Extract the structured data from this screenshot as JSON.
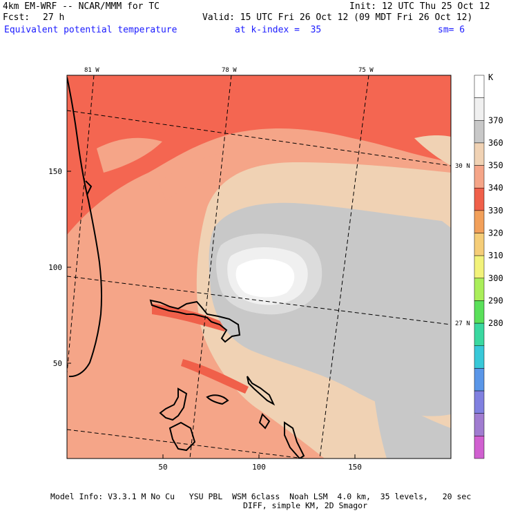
{
  "header": {
    "model": "4km EM-WRF -- NCAR/MMM for TC",
    "init": "Init: 12 UTC Thu 25 Oct 12",
    "fcst_label": "Fcst:",
    "fcst_value": "27 h",
    "valid": "Valid: 15 UTC Fri 26 Oct 12 (09 MDT Fri 26 Oct 12)",
    "field": "Equivalent potential temperature",
    "level": "at k-index =  35",
    "smooth": "sm= 6"
  },
  "map": {
    "lon_labels": [
      "81 W",
      "78 W",
      "75 W"
    ],
    "lat_labels": [
      "30 N",
      "27 N"
    ],
    "x_ticks": [
      "50",
      "100",
      "150"
    ],
    "y_ticks": [
      "150",
      "100",
      "50"
    ]
  },
  "colorbar": {
    "unit": "K",
    "levels": [
      {
        "label": "",
        "color": "#ffffff"
      },
      {
        "label": "370",
        "color": "#f0f0f0"
      },
      {
        "label": "360",
        "color": "#c8c8c8"
      },
      {
        "label": "350",
        "color": "#f0d2b4"
      },
      {
        "label": "340",
        "color": "#f5a588"
      },
      {
        "label": "330",
        "color": "#f0604a"
      },
      {
        "label": "320",
        "color": "#f2a05a"
      },
      {
        "label": "310",
        "color": "#f5cd78"
      },
      {
        "label": "300",
        "color": "#f2f27a"
      },
      {
        "label": "290",
        "color": "#aaee5a"
      },
      {
        "label": "280",
        "color": "#5ae05a"
      },
      {
        "extra": true,
        "color": "#3ad8a0"
      },
      {
        "extra": true,
        "color": "#38c8d8"
      },
      {
        "extra": true,
        "color": "#5a96e8"
      },
      {
        "extra": true,
        "color": "#8080e0"
      },
      {
        "extra": true,
        "color": "#a07cd0"
      },
      {
        "extra": true,
        "color": "#d060d0"
      }
    ]
  },
  "footer": {
    "line1": "Model Info: V3.3.1 M No Cu   YSU PBL  WSM 6class  Noah LSM  4.0 km,  35 levels,   20 sec",
    "line2": "DIFF, simple KM, 2D Smagor"
  }
}
